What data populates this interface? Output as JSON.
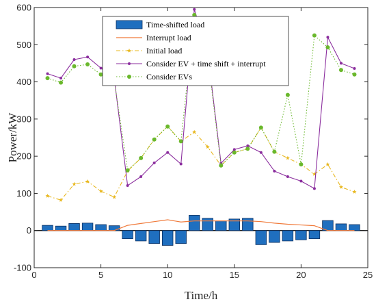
{
  "chart_data": {
    "type": "bar+line",
    "xlabel": "Time/h",
    "ylabel": "Power/kW",
    "xlim": [
      0,
      25
    ],
    "ylim": [
      -100,
      600
    ],
    "xticks": [
      0,
      5,
      10,
      15,
      20,
      25
    ],
    "yticks": [
      -100,
      0,
      100,
      200,
      300,
      400,
      500,
      600
    ],
    "grid": false,
    "legend_position": "top-center",
    "x": [
      1,
      2,
      3,
      4,
      5,
      6,
      7,
      8,
      9,
      10,
      11,
      12,
      13,
      14,
      15,
      16,
      17,
      18,
      19,
      20,
      21,
      22,
      23,
      24
    ],
    "series": [
      {
        "name": "Time-shifted load",
        "kind": "bar",
        "color": "#1f6fbf",
        "values": [
          14,
          12,
          19,
          20,
          16,
          13,
          -22,
          -28,
          -35,
          -40,
          -35,
          41,
          33,
          26,
          31,
          33,
          -38,
          -32,
          -28,
          -25,
          -22,
          27,
          18,
          16
        ]
      },
      {
        "name": "Interrupt load",
        "kind": "line",
        "color": "#f07a3a",
        "values": [
          0,
          0,
          0,
          0,
          0,
          0,
          14,
          19,
          24,
          29,
          23,
          26,
          26,
          26,
          26,
          26,
          24,
          20,
          17,
          15,
          13,
          0,
          0,
          0
        ]
      },
      {
        "name": "Initial load",
        "kind": "dashdot-marker",
        "color": "#e8b820",
        "values": [
          93,
          82,
          125,
          132,
          106,
          90,
          160,
          195,
          245,
          280,
          240,
          265,
          225,
          175,
          210,
          220,
          277,
          212,
          195,
          178,
          152,
          178,
          117,
          104
        ]
      },
      {
        "name": "Consider EV + time shift + interrupt",
        "kind": "line-marker",
        "color": "#8b2e9e",
        "values": [
          422,
          410,
          460,
          467,
          437,
          410,
          121,
          145,
          182,
          210,
          179,
          595,
          480,
          181,
          218,
          228,
          210,
          160,
          145,
          133,
          113,
          520,
          450,
          436
        ]
      },
      {
        "name": "Consider EVs",
        "kind": "dotted-marker",
        "color": "#6ab82c",
        "values": [
          410,
          398,
          442,
          447,
          420,
          405,
          162,
          195,
          245,
          280,
          240,
          580,
          470,
          175,
          210,
          220,
          277,
          212,
          365,
          178,
          525,
          493,
          432,
          420
        ]
      }
    ]
  }
}
